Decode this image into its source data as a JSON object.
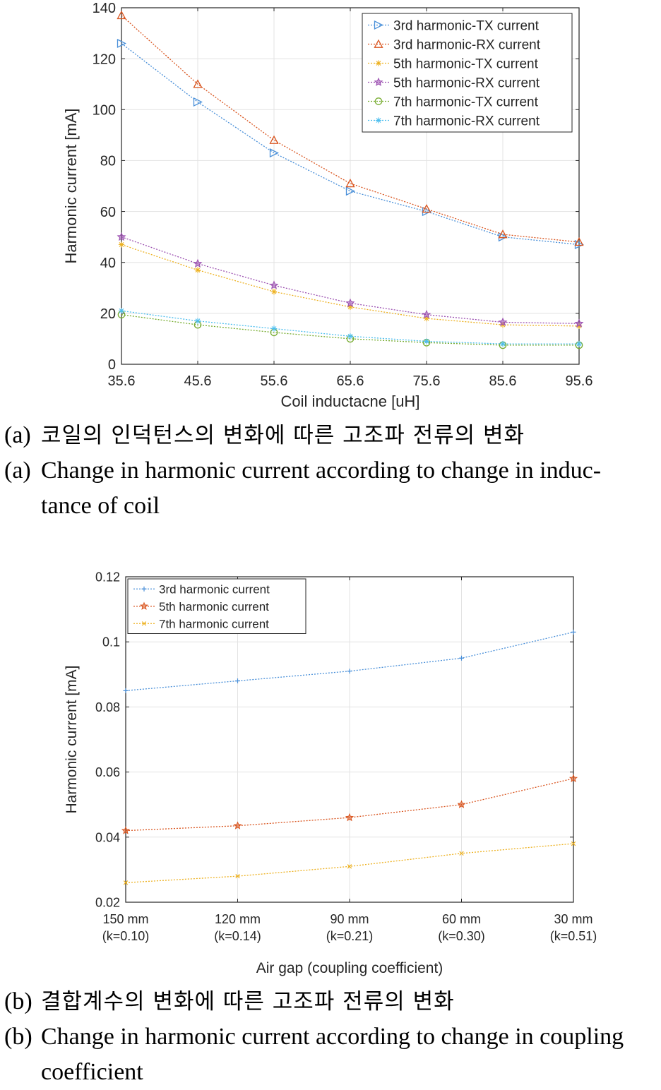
{
  "chart_data": [
    {
      "type": "line",
      "xlabel": "Coil inductacne [uH]",
      "ylabel": "Harmonic current [mA]",
      "x": [
        35.6,
        45.6,
        55.6,
        65.6,
        75.6,
        85.6,
        95.6
      ],
      "x_tick_labels": [
        "35.6",
        "45.6",
        "55.6",
        "65.6",
        "75.6",
        "85.6",
        "95.6"
      ],
      "ylim": [
        0,
        140
      ],
      "y_ticks": [
        0,
        20,
        40,
        60,
        80,
        100,
        120,
        140
      ],
      "grid": true,
      "legend_position": "top-right",
      "series": [
        {
          "name": "3rd harmonic-TX current",
          "marker": "triangle-right",
          "color": "#4a90d9",
          "values": [
            126,
            103,
            83,
            68,
            60,
            50,
            47
          ]
        },
        {
          "name": "3rd harmonic-RX current",
          "marker": "triangle-up",
          "color": "#d9541e",
          "values": [
            137,
            110,
            88,
            71,
            61,
            51,
            48
          ]
        },
        {
          "name": "5th harmonic-TX current",
          "marker": "asterisk",
          "color": "#edb120",
          "values": [
            47,
            37,
            28.5,
            22.5,
            18,
            15.5,
            15
          ]
        },
        {
          "name": "5th harmonic-RX current",
          "marker": "star",
          "color": "#9b4fb0",
          "values": [
            50,
            39.5,
            31,
            24,
            19.5,
            16.5,
            16
          ]
        },
        {
          "name": "7th harmonic-TX current",
          "marker": "circle",
          "color": "#77ac30",
          "values": [
            19.5,
            15.5,
            12.5,
            10,
            8.5,
            7.5,
            7.5
          ]
        },
        {
          "name": "7th harmonic-RX current",
          "marker": "asterisk",
          "color": "#4dbeee",
          "values": [
            21,
            17,
            14,
            11,
            9,
            8,
            8
          ]
        }
      ]
    },
    {
      "type": "line",
      "xlabel": "Air gap (coupling coefficient)",
      "ylabel": "Harmonic current [mA]",
      "categories": [
        "150 mm (k=0.10)",
        "120 mm (k=0.14)",
        "90 mm (k=0.21)",
        "60 mm (k=0.30)",
        "30 mm (k=0.51)"
      ],
      "category_lines": [
        [
          "150 mm",
          "(k=0.10)"
        ],
        [
          "120 mm",
          "(k=0.14)"
        ],
        [
          "90 mm",
          "(k=0.21)"
        ],
        [
          "60 mm",
          "(k=0.30)"
        ],
        [
          "30 mm",
          "(k=0.51)"
        ]
      ],
      "ylim": [
        0.02,
        0.12
      ],
      "y_ticks": [
        0.02,
        0.04,
        0.06,
        0.08,
        0.1,
        0.12
      ],
      "y_tick_labels": [
        "0.02",
        "0.04",
        "0.06",
        "0.08",
        "0.1",
        "0.12"
      ],
      "grid": true,
      "legend_position": "top-left",
      "series": [
        {
          "name": "3rd harmonic current",
          "marker": "plus",
          "color": "#4a90d9",
          "values": [
            0.085,
            0.088,
            0.091,
            0.095,
            0.103
          ]
        },
        {
          "name": "5th harmonic current",
          "marker": "star",
          "color": "#d9541e",
          "values": [
            0.042,
            0.0435,
            0.046,
            0.05,
            0.058
          ]
        },
        {
          "name": "7th harmonic current",
          "marker": "x",
          "color": "#edb120",
          "values": [
            0.026,
            0.028,
            0.031,
            0.035,
            0.038
          ]
        }
      ]
    }
  ],
  "captions": {
    "a_tag": "(a)",
    "a_korean": "코일의 인덕턴스의 변화에 따른 고조파 전류의 변화",
    "a_english_line1": "Change in harmonic current according to change in induc-",
    "a_english_line2": "tance of coil",
    "b_tag": "(b)",
    "b_korean": "결합계수의 변화에 따른 고조파 전류의 변화",
    "b_english_line1": "Change in harmonic current according to change in coupling",
    "b_english_line2": "coefficient"
  }
}
